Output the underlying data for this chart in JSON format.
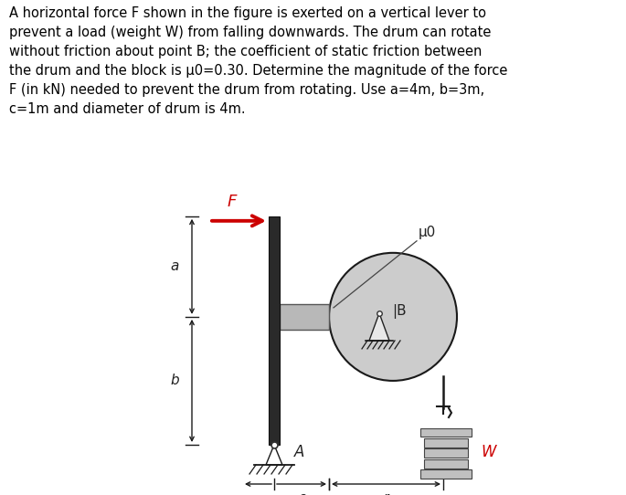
{
  "text_block": "A horizontal force F shown in the figure is exerted on a vertical lever to\nprevent a load (weight W) from falling downwards. The drum can rotate\nwithout friction about point B; the coefficient of static friction between\nthe drum and the block is μ0=0.30. Determine the magnitude of the force\nF (in kN) needed to prevent the drum from rotating. Use a=4m, b=3m,\nc=1m and diameter of drum is 4m.",
  "bg_color": "#ffffff",
  "text_color": "#000000",
  "lever_color": "#1a1a1a",
  "drum_facecolor": "#cccccc",
  "drum_edgecolor": "#1a1a1a",
  "block_facecolor": "#b8b8b8",
  "block_edgecolor": "#555555",
  "weight_facecolor": "#c0c0c0",
  "weight_edgecolor": "#444444",
  "arrow_color": "#cc0000",
  "label_F_color": "#cc0000",
  "label_W_color": "#cc0000",
  "label_black": "#222222",
  "label_F": "F",
  "label_B": "|B",
  "label_A": "A",
  "label_mu": "μ0",
  "label_c": "c",
  "label_r": "r",
  "label_W": "W",
  "label_a": "a",
  "label_b": "b"
}
